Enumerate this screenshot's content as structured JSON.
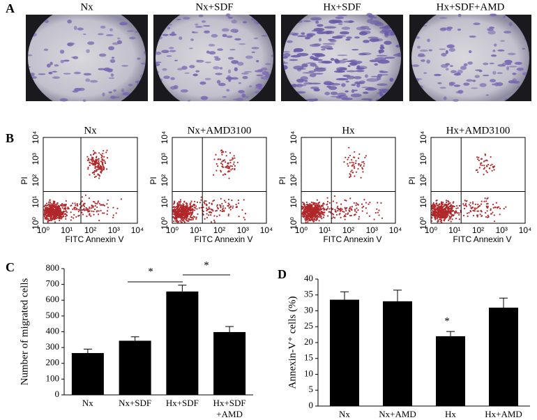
{
  "panels": {
    "a": "A",
    "b": "B",
    "c": "C",
    "d": "D"
  },
  "micrographs": {
    "labels": [
      "Nx",
      "Nx+SDF",
      "Hx+SDF",
      "Hx+SDF+AMD"
    ]
  },
  "flow_cytometry": {
    "titles": [
      "Nx",
      "Nx+AMD3100",
      "Hx",
      "Hx+AMD3100"
    ],
    "x_label": "FITC Annexin V",
    "y_label": "PI",
    "tick_labels": [
      "10⁰",
      "10¹",
      "10²",
      "10³",
      "10⁴"
    ]
  },
  "chart_data": [
    {
      "type": "bar",
      "y_label": "Number of migrated cells",
      "categories": [
        "Nx",
        "Nx+SDF",
        "Hx+SDF",
        "Hx+SDF\n+AMD"
      ],
      "values": [
        265,
        343,
        655,
        398
      ],
      "errors": [
        25,
        25,
        40,
        35
      ],
      "color": "#000000",
      "ylim": [
        0,
        800
      ],
      "yticks": [
        0,
        100,
        200,
        300,
        400,
        500,
        600,
        700,
        800
      ],
      "annotations": [
        {
          "text": "*"
        },
        {
          "text": "*"
        }
      ]
    },
    {
      "type": "bar",
      "y_label": "Annexin-V⁺ cells (%)",
      "categories": [
        "Nx",
        "Nx+AMD",
        "Hx",
        "Hx+AMD"
      ],
      "values": [
        33.5,
        33,
        22,
        31
      ],
      "errors": [
        2.5,
        3.5,
        1.5,
        3
      ],
      "color": "#000000",
      "ylim": [
        0,
        40
      ],
      "yticks": [
        0,
        5,
        10,
        15,
        20,
        25,
        30,
        35,
        40
      ],
      "annotations": [
        {
          "text": "*"
        }
      ]
    }
  ]
}
